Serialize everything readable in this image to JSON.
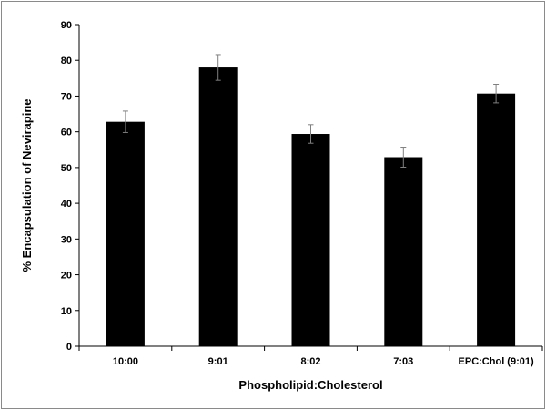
{
  "chart_data": {
    "type": "bar",
    "categories": [
      "10:00",
      "9:01",
      "8:02",
      "7:03",
      "EPC:Chol (9:01)"
    ],
    "values": [
      62.8,
      78.0,
      59.4,
      52.9,
      70.7
    ],
    "errors": [
      3.0,
      3.6,
      2.6,
      2.8,
      2.6
    ],
    "xlabel": "Phospholipid:Cholesterol",
    "ylabel": "% Encapsulation of Nevirapine",
    "ylim": [
      0,
      90
    ],
    "yticks": [
      0,
      10,
      20,
      30,
      40,
      50,
      60,
      70,
      80,
      90
    ],
    "grid": false,
    "legend": "none",
    "bar_color": "#000000"
  }
}
